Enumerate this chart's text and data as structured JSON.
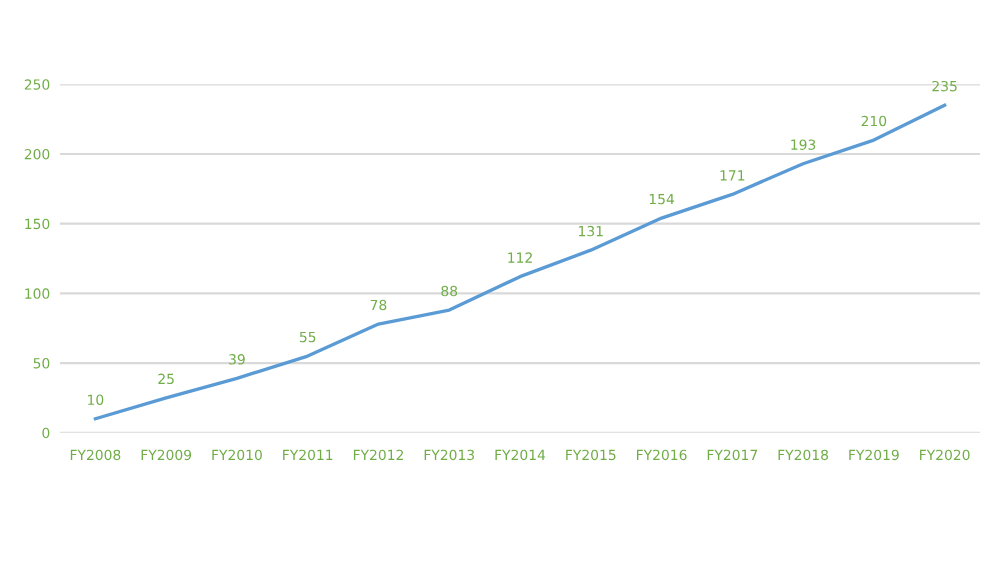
{
  "chart_data": {
    "type": "line",
    "categories": [
      "FY2008",
      "FY2009",
      "FY2010",
      "FY2011",
      "FY2012",
      "FY2013",
      "FY2014",
      "FY2015",
      "FY2016",
      "FY2017",
      "FY2018",
      "FY2019",
      "FY2020"
    ],
    "values": [
      10,
      25,
      39,
      55,
      78,
      88,
      112,
      131,
      154,
      171,
      193,
      210,
      235
    ],
    "color": "#5b9bd5",
    "ylim": [
      0,
      250
    ],
    "yticks": [
      0,
      50,
      100,
      150,
      200,
      250
    ],
    "grid": "y",
    "data_labels": true,
    "marker": "none"
  }
}
